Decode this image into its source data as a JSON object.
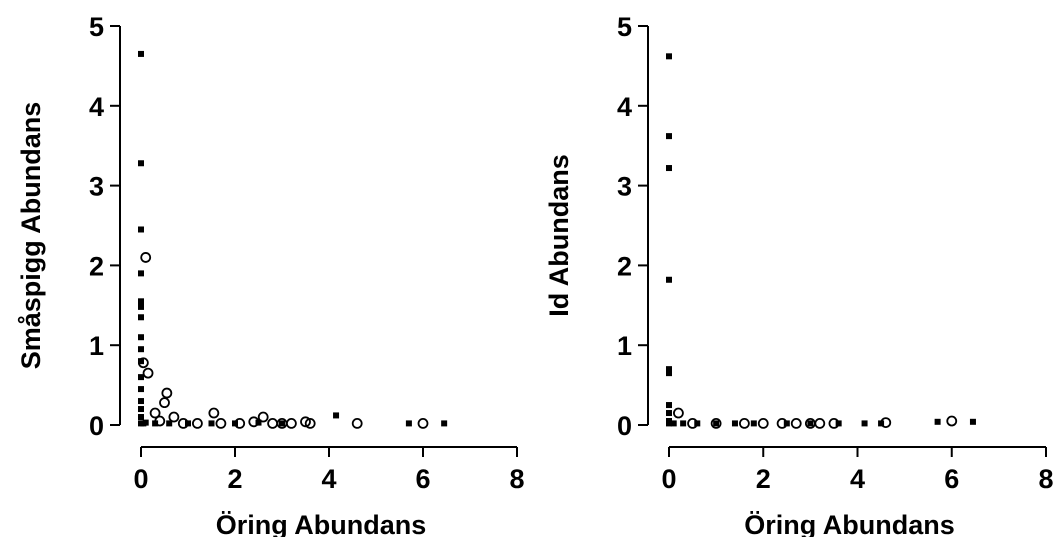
{
  "chart_data": [
    {
      "type": "scatter",
      "xlabel": "Öring Abundans",
      "ylabel": "Småspigg Abundans",
      "xlim": [
        0,
        8
      ],
      "ylim": [
        0,
        5
      ],
      "x_ticks": [
        "0",
        "2",
        "4",
        "6",
        "8"
      ],
      "y_ticks": [
        "0",
        "1",
        "2",
        "3",
        "4",
        "5"
      ],
      "series": [
        {
          "marker": "filled-square",
          "points": [
            [
              0.0,
              4.65
            ],
            [
              0.0,
              3.28
            ],
            [
              0.0,
              2.45
            ],
            [
              0.0,
              1.9
            ],
            [
              0.0,
              1.55
            ],
            [
              0.0,
              1.48
            ],
            [
              0.0,
              1.35
            ],
            [
              0.0,
              1.1
            ],
            [
              0.0,
              0.95
            ],
            [
              0.0,
              0.8
            ],
            [
              0.0,
              0.6
            ],
            [
              0.0,
              0.45
            ],
            [
              0.0,
              0.3
            ],
            [
              0.0,
              0.2
            ],
            [
              0.0,
              0.1
            ],
            [
              0.0,
              0.02
            ],
            [
              0.05,
              0.02
            ],
            [
              0.1,
              0.03
            ],
            [
              0.3,
              0.02
            ],
            [
              0.6,
              0.02
            ],
            [
              1.0,
              0.02
            ],
            [
              1.5,
              0.02
            ],
            [
              2.0,
              0.02
            ],
            [
              2.5,
              0.03
            ],
            [
              3.0,
              0.02
            ],
            [
              4.15,
              0.12
            ],
            [
              5.7,
              0.02
            ],
            [
              6.45,
              0.02
            ]
          ]
        },
        {
          "marker": "open-circle",
          "points": [
            [
              0.1,
              2.1
            ],
            [
              0.15,
              0.65
            ],
            [
              0.55,
              0.4
            ],
            [
              0.5,
              0.28
            ],
            [
              0.05,
              0.78
            ],
            [
              0.3,
              0.15
            ],
            [
              0.7,
              0.1
            ],
            [
              1.55,
              0.15
            ],
            [
              0.4,
              0.05
            ],
            [
              0.9,
              0.02
            ],
            [
              1.2,
              0.02
            ],
            [
              1.7,
              0.02
            ],
            [
              2.1,
              0.02
            ],
            [
              2.4,
              0.04
            ],
            [
              2.6,
              0.1
            ],
            [
              2.8,
              0.02
            ],
            [
              3.0,
              0.02
            ],
            [
              3.2,
              0.02
            ],
            [
              3.5,
              0.04
            ],
            [
              3.6,
              0.02
            ],
            [
              4.6,
              0.02
            ],
            [
              6.0,
              0.02
            ]
          ]
        }
      ]
    },
    {
      "type": "scatter",
      "xlabel": "Öring Abundans",
      "ylabel": "Id Abundans",
      "xlim": [
        0,
        8
      ],
      "ylim": [
        0,
        5
      ],
      "x_ticks": [
        "0",
        "2",
        "4",
        "6",
        "8"
      ],
      "y_ticks": [
        "0",
        "1",
        "2",
        "3",
        "4",
        "5"
      ],
      "series": [
        {
          "marker": "filled-square",
          "points": [
            [
              0.0,
              4.62
            ],
            [
              0.0,
              3.62
            ],
            [
              0.0,
              3.22
            ],
            [
              0.0,
              1.82
            ],
            [
              0.0,
              0.7
            ],
            [
              0.0,
              0.65
            ],
            [
              0.0,
              0.25
            ],
            [
              0.0,
              0.15
            ],
            [
              0.0,
              0.05
            ],
            [
              0.0,
              0.02
            ],
            [
              0.1,
              0.02
            ],
            [
              0.3,
              0.02
            ],
            [
              0.6,
              0.02
            ],
            [
              1.0,
              0.02
            ],
            [
              1.4,
              0.02
            ],
            [
              1.8,
              0.02
            ],
            [
              2.5,
              0.02
            ],
            [
              3.0,
              0.02
            ],
            [
              3.6,
              0.02
            ],
            [
              4.15,
              0.02
            ],
            [
              4.5,
              0.02
            ],
            [
              5.7,
              0.04
            ],
            [
              6.45,
              0.04
            ]
          ]
        },
        {
          "marker": "open-circle",
          "points": [
            [
              0.2,
              0.15
            ],
            [
              0.5,
              0.02
            ],
            [
              1.0,
              0.02
            ],
            [
              1.6,
              0.02
            ],
            [
              2.0,
              0.02
            ],
            [
              2.4,
              0.02
            ],
            [
              2.7,
              0.02
            ],
            [
              3.0,
              0.02
            ],
            [
              3.2,
              0.02
            ],
            [
              3.5,
              0.02
            ],
            [
              4.6,
              0.03
            ],
            [
              6.0,
              0.05
            ]
          ]
        }
      ]
    }
  ]
}
